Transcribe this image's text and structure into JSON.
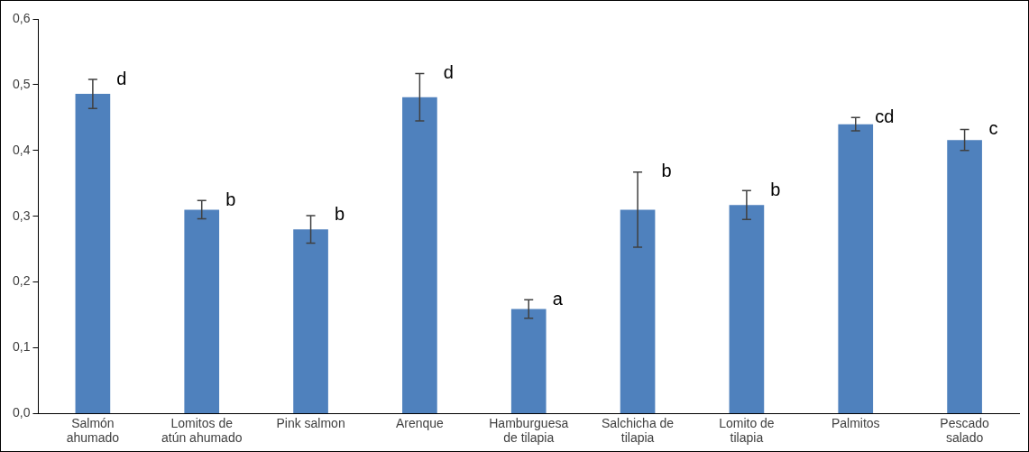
{
  "chart_data": {
    "type": "bar",
    "categories": [
      "Salmón ahumado",
      "Lomitos de atún ahumado",
      "Pink salmon",
      "Arenque",
      "Hamburguesa de tilapia",
      "Salchicha de tilapia",
      "Lomito de tilapia",
      "Palmitos",
      "Pescado salado"
    ],
    "values": [
      0.486,
      0.31,
      0.28,
      0.481,
      0.159,
      0.31,
      0.317,
      0.44,
      0.416
    ],
    "errors": [
      0.022,
      0.014,
      0.021,
      0.036,
      0.014,
      0.057,
      0.022,
      0.01,
      0.016
    ],
    "color": "#4f81bd",
    "ylim": [
      0,
      0.6
    ],
    "yticks": [
      {
        "value": 0,
        "label": "0,0"
      },
      {
        "value": 0.1,
        "label": "0,1"
      },
      {
        "value": 0.2,
        "label": "0,2"
      },
      {
        "value": 0.3,
        "label": "0,3"
      },
      {
        "value": 0.4,
        "label": "0,4"
      },
      {
        "value": 0.5,
        "label": "0,5"
      },
      {
        "value": 0.6,
        "label": "0,6"
      }
    ],
    "grid": false,
    "legend": false,
    "annotations": [
      {
        "text": "d",
        "x": "Salmón ahumado",
        "y": 0.508
      },
      {
        "text": "b",
        "x": "Lomitos de atún ahumado",
        "y": 0.324
      },
      {
        "text": "b",
        "x": "Pink salmon",
        "y": 0.301
      },
      {
        "text": "d",
        "x": "Arenque",
        "y": 0.517
      },
      {
        "text": "a",
        "x": "Hamburguesa de tilapia",
        "y": 0.173
      },
      {
        "text": "b",
        "x": "Salchicha de tilapia",
        "y": 0.367
      },
      {
        "text": "b",
        "x": "Lomito de tilapia",
        "y": 0.339
      },
      {
        "text": "cd",
        "x": "Palmitos",
        "y": 0.45
      },
      {
        "text": "c",
        "x": "Pescado salado",
        "y": 0.432
      }
    ]
  }
}
